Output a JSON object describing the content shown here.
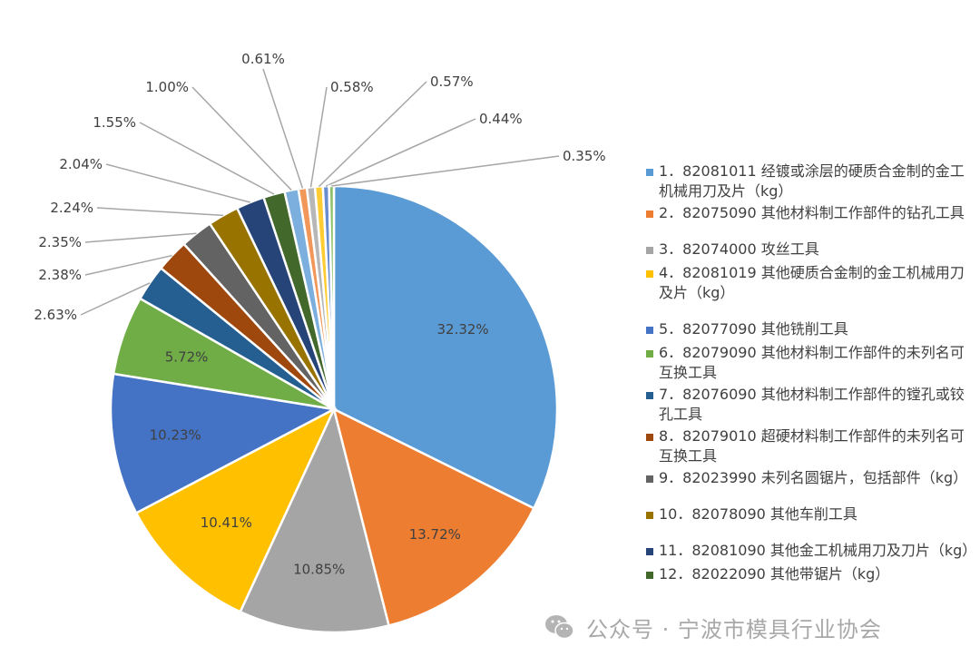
{
  "chart_data": {
    "type": "pie",
    "title": "",
    "slices": [
      {
        "label": "1．82081011 经镀或涂层的硬质合金制的金工机械用刀及片（kg）",
        "value": 32.32,
        "label_text": "32.32%",
        "color": "#5B9BD5"
      },
      {
        "label": "2．82075090 其他材料制工作部件的钻孔工具",
        "value": 13.72,
        "label_text": "13.72%",
        "color": "#ED7D31"
      },
      {
        "label": "3．82074000 攻丝工具",
        "value": 10.85,
        "label_text": "10.85%",
        "color": "#A5A5A5"
      },
      {
        "label": "4．82081019 其他硬质合金制的金工机械用刀及片（kg）",
        "value": 10.41,
        "label_text": "10.41%",
        "color": "#FFC000"
      },
      {
        "label": "5．82077090 其他铣削工具",
        "value": 10.23,
        "label_text": "10.23%",
        "color": "#4472C4"
      },
      {
        "label": "6．82079090 其他材料制工作部件的未列名可互换工具",
        "value": 5.72,
        "label_text": "5.72%",
        "color": "#70AD47"
      },
      {
        "label": "7．82076090 其他材料制工作部件的镗孔或铰孔工具",
        "value": 2.63,
        "label_text": "2.63%",
        "color": "#255E91"
      },
      {
        "label": "8．82079010 超硬材料制工作部件的未列名可互换工具",
        "value": 2.38,
        "label_text": "2.38%",
        "color": "#9E480E"
      },
      {
        "label": "9．82023990 未列名圆锯片，包括部件（kg）",
        "value": 2.35,
        "label_text": "2.35%",
        "color": "#636363"
      },
      {
        "label": "10．82078090 其他车削工具",
        "value": 2.24,
        "label_text": "2.24%",
        "color": "#997300"
      },
      {
        "label": "11．82081090 其他金工机械用刀及刀片（kg）",
        "value": 2.04,
        "label_text": "2.04%",
        "color": "#264478"
      },
      {
        "label": "12．82022090 其他带锯片（kg）",
        "value": 1.55,
        "label_text": "1.55%",
        "color": "#43682B"
      },
      {
        "label": "",
        "value": 1.0,
        "label_text": "1.00%",
        "color": "#7CAFDD"
      },
      {
        "label": "",
        "value": 0.61,
        "label_text": "0.61%",
        "color": "#F1975A"
      },
      {
        "label": "",
        "value": 0.58,
        "label_text": "0.58%",
        "color": "#B7B7B7"
      },
      {
        "label": "",
        "value": 0.57,
        "label_text": "0.57%",
        "color": "#FFCD33"
      },
      {
        "label": "",
        "value": 0.44,
        "label_text": "0.44%",
        "color": "#698ED0"
      },
      {
        "label": "",
        "value": 0.35,
        "label_text": "0.35%",
        "color": "#8CC168"
      }
    ],
    "legend_position": "right"
  },
  "legend_items": [
    "1．82081011 经镀或涂层的硬质合金制的金工机械用刀及片（kg）",
    "2．82075090 其他材料制工作部件的钻孔工具",
    "3．82074000 攻丝工具",
    "4．82081019 其他硬质合金制的金工机械用刀及片（kg）",
    "5．82077090 其他铣削工具",
    "6．82079090 其他材料制工作部件的未列名可互换工具",
    "7．82076090 其他材料制工作部件的镗孔或铰孔工具",
    "8．82079010 超硬材料制工作部件的未列名可互换工具",
    "9．82023990 未列名圆锯片，包括部件（kg）",
    "10．82078090 其他车削工具",
    "11．82081090 其他金工机械用刀及刀片（kg）",
    "12．82022090 其他带锯片（kg）"
  ],
  "watermark": {
    "text": "公众号 · 宁波市模具行业协会",
    "icon": "wechat-icon"
  }
}
